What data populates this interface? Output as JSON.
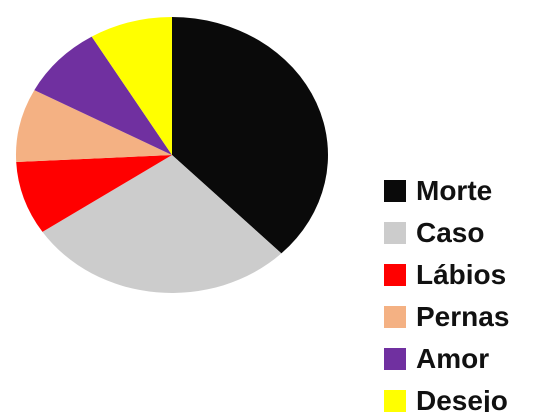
{
  "chart_data": {
    "type": "pie",
    "title": "",
    "legend_position": "right",
    "slices": [
      {
        "label": "Morte",
        "value": 35,
        "color": "#0a0a0a"
      },
      {
        "label": "Caso",
        "value": 26,
        "color": "#cccccc"
      },
      {
        "label": "Lábios",
        "value": 8,
        "color": "#ff0000"
      },
      {
        "label": "Pernas",
        "value": 8,
        "color": "#f4b183"
      },
      {
        "label": "Amor",
        "value": 8,
        "color": "#7030a0"
      },
      {
        "label": "Desejo",
        "value": 8,
        "color": "#ffff00"
      }
    ]
  }
}
